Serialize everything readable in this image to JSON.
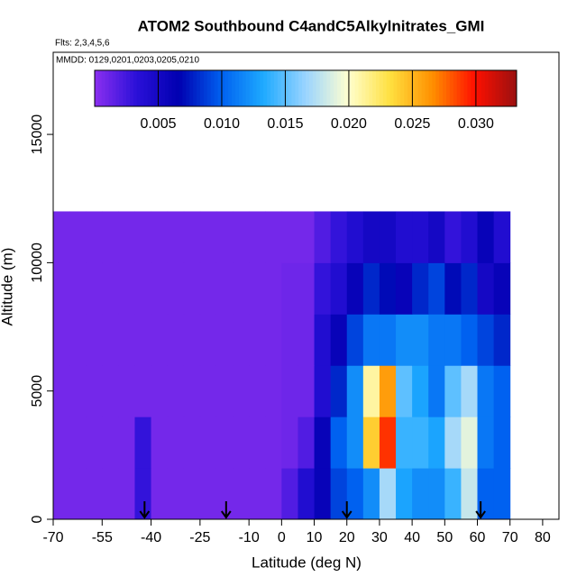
{
  "chart_data": {
    "type": "heatmap",
    "title": "ATOM2 Southbound C4andC5Alkylnitrates_GMI",
    "subtitle": "Flts: 2,3,4,5,6",
    "annotation": "MMDD: 0129,0201,0203,0205,0210",
    "xlabel": "Latitude (deg N)",
    "ylabel": "Altitude (m)",
    "xlim": [
      -70,
      85
    ],
    "ylim": [
      0,
      18200
    ],
    "xticks": [
      -70,
      -55,
      -40,
      -25,
      -10,
      0,
      10,
      20,
      30,
      40,
      50,
      60,
      70,
      80
    ],
    "yticks": [
      0,
      5000,
      10000,
      15000
    ],
    "clim": [
      0,
      0.0332
    ],
    "cticks": [
      0.005,
      {
        "value": 0.01,
        "label": "0.010"
      },
      0.015,
      {
        "value": 0.02,
        "label": "0.020"
      },
      0.025,
      {
        "value": 0.03,
        "label": "0.030"
      }
    ],
    "colors": [
      "#8b2ff0",
      "#2a10d8",
      "#0000b0",
      "#0060f0",
      "#1eaaff",
      "#9ad4ff",
      "#ffffd0",
      "#ffe040",
      "#ff9000",
      "#ff1000",
      "#9a1010"
    ],
    "x_edges": [
      -70,
      -65,
      -60,
      -55,
      -50,
      -45,
      -40,
      -35,
      -30,
      -25,
      -20,
      -15,
      -10,
      -5,
      0,
      5,
      10,
      15,
      20,
      25,
      30,
      35,
      40,
      45,
      50,
      55,
      60,
      65,
      70
    ],
    "y_edges": [
      0,
      2000,
      4000,
      6000,
      8000,
      10000,
      12000
    ],
    "z": [
      [
        0.0008,
        0.0008,
        0.0008,
        0.0008,
        0.0008,
        0.003,
        0.0008,
        0.0008,
        0.0008,
        0.0008,
        0.0008,
        0.0008,
        0.0008,
        0.0008,
        0.002,
        0.004,
        0.006,
        0.009,
        0.01,
        0.012,
        0.017,
        0.013,
        0.012,
        0.012,
        0.014,
        0.018,
        0.01,
        0.01
      ],
      [
        0.0008,
        0.0008,
        0.0008,
        0.0008,
        0.0008,
        0.003,
        0.0008,
        0.0008,
        0.0008,
        0.0008,
        0.0008,
        0.0008,
        0.0008,
        0.0008,
        0.001,
        0.002,
        0.006,
        0.01,
        0.012,
        0.024,
        0.029,
        0.014,
        0.014,
        0.013,
        0.017,
        0.019,
        0.011,
        0.01
      ],
      [
        0.0008,
        0.0008,
        0.0008,
        0.0008,
        0.0008,
        0.0008,
        0.0008,
        0.0008,
        0.0008,
        0.0008,
        0.0008,
        0.0008,
        0.0008,
        0.0008,
        0.001,
        0.001,
        0.004,
        0.008,
        0.012,
        0.021,
        0.026,
        0.015,
        0.013,
        0.011,
        0.015,
        0.017,
        0.011,
        0.01
      ],
      [
        0.0008,
        0.0008,
        0.0008,
        0.0008,
        0.0008,
        0.0008,
        0.0008,
        0.0008,
        0.0008,
        0.0008,
        0.0008,
        0.0008,
        0.0008,
        0.0008,
        0.001,
        0.001,
        0.004,
        0.006,
        0.009,
        0.011,
        0.011,
        0.012,
        0.012,
        0.011,
        0.011,
        0.01,
        0.009,
        0.008
      ],
      [
        0.0008,
        0.0008,
        0.0008,
        0.0008,
        0.0008,
        0.0008,
        0.0008,
        0.0008,
        0.0008,
        0.0008,
        0.0008,
        0.0008,
        0.0008,
        0.0008,
        0.001,
        0.001,
        0.003,
        0.004,
        0.006,
        0.008,
        0.007,
        0.006,
        0.008,
        0.009,
        0.007,
        0.008,
        0.005,
        0.006
      ],
      [
        0.0008,
        0.0008,
        0.0008,
        0.0008,
        0.0008,
        0.0008,
        0.0008,
        0.0008,
        0.0008,
        0.0008,
        0.0008,
        0.0008,
        0.0008,
        0.0008,
        0.0008,
        0.0008,
        0.002,
        0.003,
        0.004,
        0.005,
        0.005,
        0.004,
        0.004,
        0.005,
        0.003,
        0.004,
        0.006,
        0.004
      ]
    ],
    "arrows": [
      -42,
      -17,
      20,
      61
    ]
  }
}
